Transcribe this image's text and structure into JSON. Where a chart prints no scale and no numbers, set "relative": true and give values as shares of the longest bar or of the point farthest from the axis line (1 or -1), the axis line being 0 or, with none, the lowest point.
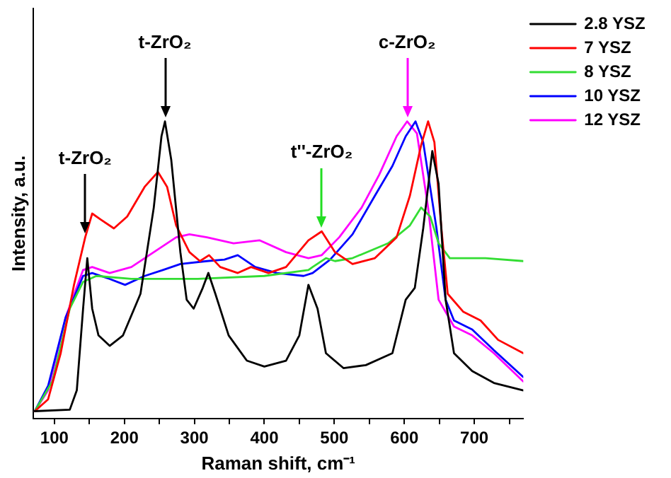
{
  "chart_data": {
    "type": "line",
    "relative": true,
    "xlabel": "Raman shift, cm⁻¹",
    "ylabel": "Intensity, a.u.",
    "xlim": [
      70,
      770
    ],
    "xticks": [
      100,
      {
        "value": 150,
        "label": null
      },
      200,
      {
        "value": 250,
        "label": null
      },
      300,
      {
        "value": 350,
        "label": null
      },
      400,
      {
        "value": 450,
        "label": null
      },
      500,
      {
        "value": 550,
        "label": null
      },
      600,
      {
        "value": 650,
        "label": null
      },
      700,
      {
        "value": 750,
        "label": null
      }
    ],
    "legend": "top right",
    "grid": false,
    "marker": "none",
    "line_style": "solid",
    "annotations": [
      {
        "text": "t-ZrO₂",
        "x": 144,
        "y": 0.61
      },
      {
        "text": "t-ZrO₂",
        "x": 258,
        "y": 1.0
      },
      {
        "text": "t''-ZrO₂",
        "x": 482,
        "y": 0.63
      },
      {
        "text": "c-ZrO₂",
        "x": 604,
        "y": 1.0
      }
    ],
    "series": [
      {
        "name": "2.8 YSZ",
        "color": "#000000",
        "x": [
          72,
          122,
          132,
          141,
          147,
          154,
          163,
          179,
          198,
          223,
          242,
          253,
          258,
          267,
          280,
          289,
          299,
          312,
          320,
          330,
          349,
          375,
          400,
          431,
          450,
          463,
          476,
          488,
          513,
          545,
          583,
          602,
          615,
          627,
          640,
          649,
          659,
          671,
          697,
          728,
          770
        ],
        "values": [
          0.025,
          0.03,
          0.095,
          0.37,
          0.54,
          0.37,
          0.28,
          0.245,
          0.28,
          0.42,
          0.71,
          0.95,
          1.0,
          0.87,
          0.56,
          0.4,
          0.37,
          0.44,
          0.49,
          0.42,
          0.28,
          0.195,
          0.175,
          0.195,
          0.28,
          0.45,
          0.37,
          0.22,
          0.17,
          0.18,
          0.22,
          0.4,
          0.44,
          0.64,
          0.9,
          0.79,
          0.4,
          0.22,
          0.16,
          0.12,
          0.095
        ]
      },
      {
        "name": "7 YSZ",
        "color": "#ff0000",
        "x": [
          72,
          91,
          109,
          128,
          144,
          154,
          166,
          185,
          204,
          229,
          248,
          261,
          274,
          293,
          308,
          321,
          337,
          362,
          381,
          406,
          431,
          463,
          482,
          501,
          526,
          558,
          589,
          608,
          624,
          634,
          643,
          653,
          662,
          684,
          709,
          734,
          770
        ],
        "values": [
          0.025,
          0.065,
          0.22,
          0.45,
          0.61,
          0.69,
          0.67,
          0.64,
          0.68,
          0.78,
          0.83,
          0.78,
          0.65,
          0.56,
          0.53,
          0.55,
          0.51,
          0.49,
          0.51,
          0.49,
          0.51,
          0.6,
          0.63,
          0.56,
          0.52,
          0.54,
          0.61,
          0.75,
          0.92,
          1.0,
          0.93,
          0.64,
          0.42,
          0.36,
          0.33,
          0.265,
          0.22
        ]
      },
      {
        "name": "8 YSZ",
        "color": "#33dd33",
        "x": [
          72,
          97,
          122,
          141,
          160,
          210,
          305,
          400,
          463,
          469,
          488,
          501,
          526,
          577,
          608,
          624,
          637,
          649,
          665,
          716,
          770
        ],
        "values": [
          0.025,
          0.125,
          0.37,
          0.46,
          0.48,
          0.47,
          0.47,
          0.48,
          0.5,
          0.51,
          0.54,
          0.53,
          0.54,
          0.59,
          0.65,
          0.71,
          0.68,
          0.59,
          0.54,
          0.54,
          0.53
        ]
      },
      {
        "name": "10 YSZ",
        "color": "#0000ff",
        "x": [
          72,
          91,
          116,
          141,
          154,
          179,
          201,
          229,
          255,
          280,
          318,
          343,
          362,
          387,
          418,
          456,
          469,
          494,
          526,
          558,
          583,
          602,
          616,
          627,
          646,
          659,
          671,
          697,
          728,
          770
        ],
        "values": [
          0.025,
          0.11,
          0.34,
          0.48,
          0.49,
          0.47,
          0.45,
          0.48,
          0.5,
          0.52,
          0.53,
          0.535,
          0.55,
          0.51,
          0.49,
          0.48,
          0.49,
          0.535,
          0.62,
          0.75,
          0.85,
          0.95,
          1.0,
          0.93,
          0.64,
          0.4,
          0.33,
          0.3,
          0.23,
          0.14
        ]
      },
      {
        "name": "12 YSZ",
        "color": "#ff00ff",
        "x": [
          72,
          91,
          116,
          141,
          154,
          179,
          210,
          242,
          274,
          293,
          318,
          356,
          393,
          431,
          463,
          482,
          507,
          539,
          564,
          589,
          604,
          618,
          634,
          649,
          671,
          697,
          728,
          770
        ],
        "values": [
          0.025,
          0.095,
          0.34,
          0.5,
          0.51,
          0.49,
          0.51,
          0.56,
          0.61,
          0.62,
          0.61,
          0.59,
          0.6,
          0.56,
          0.54,
          0.55,
          0.61,
          0.71,
          0.82,
          0.95,
          1.0,
          0.96,
          0.71,
          0.4,
          0.31,
          0.28,
          0.22,
          0.125
        ]
      }
    ]
  }
}
